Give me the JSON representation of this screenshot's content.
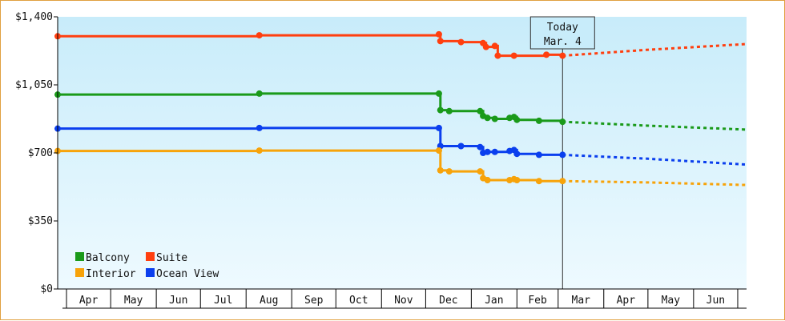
{
  "chart_data": {
    "type": "line",
    "style": "step",
    "y_ticks": [
      "$0",
      "$350",
      "$700",
      "$1,050",
      "$1,400"
    ],
    "y_tick_values": [
      0,
      350,
      700,
      1050,
      1400
    ],
    "ylim": [
      0,
      1400
    ],
    "x_ticks": [
      "Apr",
      "May",
      "Jun",
      "Jul",
      "Aug",
      "Sep",
      "Oct",
      "Nov",
      "Dec",
      "Jan",
      "Feb",
      "Mar",
      "Apr",
      "May",
      "Jun"
    ],
    "xlim": [
      "2014-03-26",
      "2015-07-07"
    ],
    "grid": false,
    "legend_position": "bottom-left",
    "today": {
      "date": "2015-03-04",
      "line1": "Today",
      "line2": "Mar. 4"
    },
    "colors": {
      "Balcony": "#1a9a1a",
      "Suite": "#ff3f0f",
      "Interior": "#f7a30a",
      "Ocean View": "#0b3fee",
      "bg_top": "#c8ecfa",
      "bg_bottom": "#eefaff"
    },
    "legend_order": [
      "Balcony",
      "Suite",
      "Interior",
      "Ocean View"
    ],
    "series": [
      {
        "name": "Suite",
        "points": [
          [
            "2014-03-26",
            1300
          ],
          [
            "2014-08-10",
            1305
          ],
          [
            "2014-12-10",
            1310
          ],
          [
            "2014-12-11",
            1275
          ],
          [
            "2014-12-25",
            1270
          ],
          [
            "2015-01-09",
            1265
          ],
          [
            "2015-01-11",
            1245
          ],
          [
            "2015-01-17",
            1250
          ],
          [
            "2015-01-19",
            1200
          ],
          [
            "2015-01-30",
            1200
          ],
          [
            "2015-02-21",
            1205
          ],
          [
            "2015-03-04",
            1200
          ]
        ],
        "forecast": [
          [
            "2015-03-04",
            1200
          ],
          [
            "2015-04-30",
            1230
          ],
          [
            "2015-07-07",
            1260
          ]
        ]
      },
      {
        "name": "Balcony",
        "points": [
          [
            "2014-03-26",
            1000
          ],
          [
            "2014-08-10",
            1005
          ],
          [
            "2014-12-10",
            1005
          ],
          [
            "2014-12-11",
            920
          ],
          [
            "2014-12-17",
            915
          ],
          [
            "2015-01-07",
            915
          ],
          [
            "2015-01-09",
            890
          ],
          [
            "2015-01-12",
            880
          ],
          [
            "2015-01-17",
            875
          ],
          [
            "2015-01-27",
            880
          ],
          [
            "2015-01-30",
            885
          ],
          [
            "2015-02-01",
            870
          ],
          [
            "2015-02-16",
            865
          ],
          [
            "2015-03-04",
            860
          ]
        ],
        "forecast": [
          [
            "2015-03-04",
            860
          ],
          [
            "2015-05-01",
            840
          ],
          [
            "2015-07-07",
            820
          ]
        ]
      },
      {
        "name": "Ocean View",
        "points": [
          [
            "2014-03-26",
            825
          ],
          [
            "2014-08-10",
            828
          ],
          [
            "2014-12-10",
            828
          ],
          [
            "2014-12-11",
            735
          ],
          [
            "2014-12-25",
            735
          ],
          [
            "2015-01-07",
            730
          ],
          [
            "2015-01-09",
            700
          ],
          [
            "2015-01-12",
            705
          ],
          [
            "2015-01-17",
            705
          ],
          [
            "2015-01-27",
            710
          ],
          [
            "2015-01-30",
            715
          ],
          [
            "2015-02-01",
            695
          ],
          [
            "2015-02-16",
            690
          ],
          [
            "2015-03-04",
            690
          ]
        ],
        "forecast": [
          [
            "2015-03-04",
            690
          ],
          [
            "2015-05-01",
            670
          ],
          [
            "2015-07-07",
            640
          ]
        ]
      },
      {
        "name": "Interior",
        "points": [
          [
            "2014-03-26",
            710
          ],
          [
            "2014-08-10",
            712
          ],
          [
            "2014-12-10",
            712
          ],
          [
            "2014-12-11",
            610
          ],
          [
            "2014-12-17",
            605
          ],
          [
            "2015-01-07",
            605
          ],
          [
            "2015-01-09",
            570
          ],
          [
            "2015-01-12",
            560
          ],
          [
            "2015-01-27",
            560
          ],
          [
            "2015-01-30",
            565
          ],
          [
            "2015-02-01",
            560
          ],
          [
            "2015-02-16",
            555
          ],
          [
            "2015-03-04",
            555
          ]
        ],
        "forecast": [
          [
            "2015-03-04",
            555
          ],
          [
            "2015-05-01",
            548
          ],
          [
            "2015-07-07",
            535
          ]
        ]
      }
    ]
  }
}
